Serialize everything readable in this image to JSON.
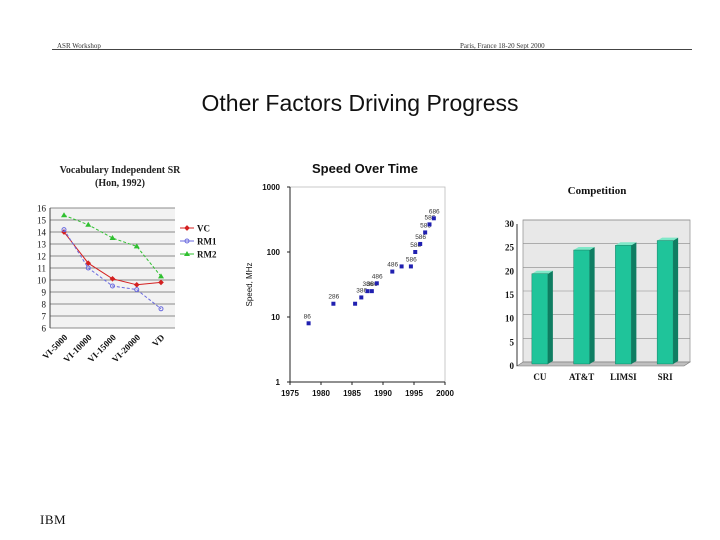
{
  "header": {
    "left": "ASR Workshop",
    "right": "Paris, France 18-20 Sept 2000"
  },
  "slide_title": "Other Factors Driving Progress",
  "logo_text": "IBM",
  "chart_data": [
    {
      "type": "line",
      "title": "Vocabulary Independent SR",
      "subtitle": "(Hon, 1992)",
      "categories": [
        "VI-5000",
        "VI-10000",
        "VI-15000",
        "VI-20000",
        "VD"
      ],
      "ylim": [
        6,
        16
      ],
      "yticks": [
        6,
        7,
        8,
        9,
        10,
        11,
        12,
        13,
        14,
        15,
        16
      ],
      "legend_position": "right",
      "series": [
        {
          "name": "VC",
          "color": "#d42020",
          "marker": "diamond",
          "values": [
            14.0,
            11.4,
            10.1,
            9.6,
            9.8
          ]
        },
        {
          "name": "RM1",
          "color": "#6a6adf",
          "marker": "circle",
          "values": [
            14.2,
            11.0,
            9.5,
            9.2,
            7.6
          ]
        },
        {
          "name": "RM2",
          "color": "#30c030",
          "marker": "triangle",
          "values": [
            15.4,
            14.6,
            13.5,
            12.8,
            10.3
          ]
        }
      ]
    },
    {
      "type": "scatter",
      "title": "Speed Over Time",
      "ylabel": "Speed, MHz",
      "xlim": [
        1975,
        2000
      ],
      "xticks": [
        1975,
        1980,
        1985,
        1990,
        1995,
        2000
      ],
      "ylog": true,
      "ylim": [
        1,
        1000
      ],
      "yticks": [
        1,
        10,
        100,
        1000
      ],
      "color": "#2020b0",
      "points": [
        {
          "x": 1978,
          "y": 8,
          "label": "86"
        },
        {
          "x": 1982,
          "y": 16,
          "label": "286"
        },
        {
          "x": 1985.5,
          "y": 16,
          "label": ""
        },
        {
          "x": 1986.5,
          "y": 20,
          "label": "386"
        },
        {
          "x": 1987.5,
          "y": 25,
          "label": "386"
        },
        {
          "x": 1988.2,
          "y": 25,
          "label": "386"
        },
        {
          "x": 1989,
          "y": 33,
          "label": "486"
        },
        {
          "x": 1991.5,
          "y": 50,
          "label": "486"
        },
        {
          "x": 1993,
          "y": 60,
          "label": ""
        },
        {
          "x": 1994.5,
          "y": 60,
          "label": "586"
        },
        {
          "x": 1995.2,
          "y": 100,
          "label": "586"
        },
        {
          "x": 1996,
          "y": 133,
          "label": "586"
        },
        {
          "x": 1996.8,
          "y": 200,
          "label": "586"
        },
        {
          "x": 1997.5,
          "y": 266,
          "label": "586"
        },
        {
          "x": 1998.2,
          "y": 330,
          "label": "686"
        }
      ]
    },
    {
      "type": "bar",
      "title": "Competition",
      "categories": [
        "CU",
        "AT&T",
        "LIMSI",
        "SRI"
      ],
      "values": [
        19.5,
        24.5,
        25.5,
        26.5
      ],
      "ylim": [
        0,
        30
      ],
      "yticks": [
        0,
        5,
        10,
        15,
        20,
        25,
        30
      ],
      "color": "#1fc49a",
      "grid": true
    }
  ]
}
